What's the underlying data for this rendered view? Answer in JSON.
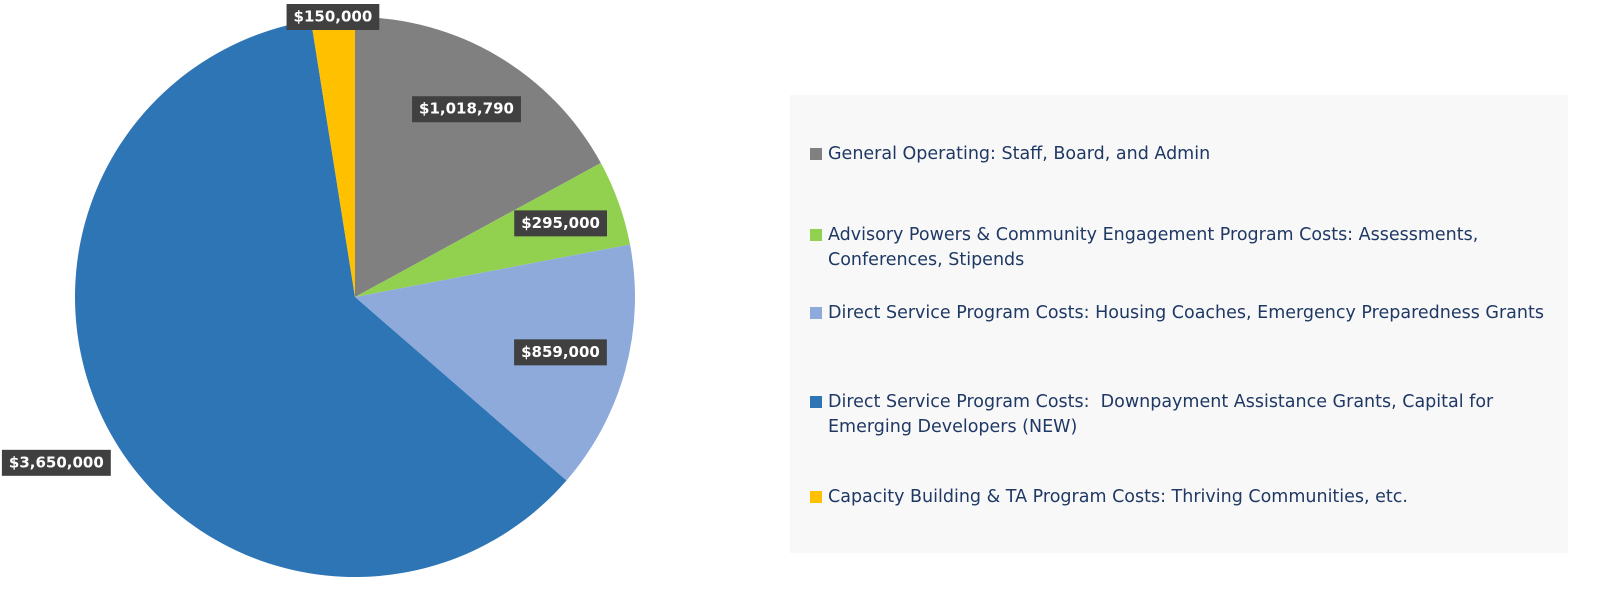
{
  "chart_data": {
    "type": "pie",
    "categories": [
      "General Operating: Staff, Board, and Admin",
      "Advisory Powers & Community Engagement Program Costs: Assessments, Conferences, Stipends",
      "Direct Service Program Costs: Housing Coaches, Emergency Preparedness Grants",
      "Direct Service Program Costs:  Downpayment Assistance Grants, Capital for Emerging Developers (NEW)",
      "Capacity Building & TA Program Costs: Thriving Communities, etc."
    ],
    "values": [
      1018790,
      295000,
      859000,
      3650000,
      150000
    ],
    "value_labels": [
      "$1,018,790",
      "$295,000",
      "$859,000",
      "$3,650,000",
      "$150,000"
    ],
    "colors": [
      "#808080",
      "#92d050",
      "#8eaadb",
      "#2e75b6",
      "#ffc000"
    ],
    "legend": "right"
  }
}
